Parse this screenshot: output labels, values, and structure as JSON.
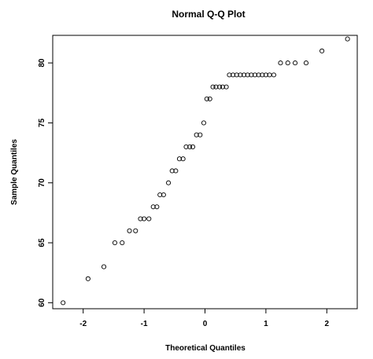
{
  "chart_data": {
    "type": "scatter",
    "title": "Normal Q-Q Plot",
    "xlabel": "Theoretical Quantiles",
    "ylabel": "Sample Quantiles",
    "xlim": [
      -2.5,
      2.5
    ],
    "ylim": [
      59.5,
      82.3
    ],
    "x_ticks": [
      -2,
      -1,
      0,
      1,
      2
    ],
    "x_tick_labels": [
      "-2",
      "-1",
      "0",
      "1",
      "2"
    ],
    "y_ticks": [
      60,
      65,
      70,
      75,
      80
    ],
    "y_tick_labels": [
      "60",
      "65",
      "70",
      "75",
      "80"
    ],
    "grid": false,
    "marker": "circle",
    "series": [
      {
        "x": [
          -2.33,
          -1.92,
          -1.66,
          -1.48,
          -1.36,
          -1.24,
          -1.14,
          -1.06,
          -1.0,
          -0.92,
          -0.85,
          -0.79,
          -0.74,
          -0.68,
          -0.6,
          -0.54,
          -0.48,
          -0.42,
          -0.36,
          -0.31,
          -0.25,
          -0.2,
          -0.14,
          -0.08,
          -0.02,
          0.03,
          0.08,
          0.13,
          0.18,
          0.24,
          0.29,
          0.35,
          0.4,
          0.46,
          0.52,
          0.58,
          0.64,
          0.7,
          0.76,
          0.82,
          0.88,
          0.94,
          1.0,
          1.06,
          1.13,
          1.24,
          1.36,
          1.48,
          1.66,
          1.92,
          2.34
        ],
        "y": [
          60,
          62,
          63,
          65,
          65,
          66,
          66,
          67,
          67,
          67,
          68,
          68,
          69,
          69,
          70,
          71,
          71,
          72,
          72,
          73,
          73,
          73,
          74,
          74,
          75,
          77,
          77,
          78,
          78,
          78,
          78,
          78,
          79,
          79,
          79,
          79,
          79,
          79,
          79,
          79,
          79,
          79,
          79,
          79,
          79,
          80,
          80,
          80,
          80,
          81,
          82
        ]
      }
    ]
  }
}
